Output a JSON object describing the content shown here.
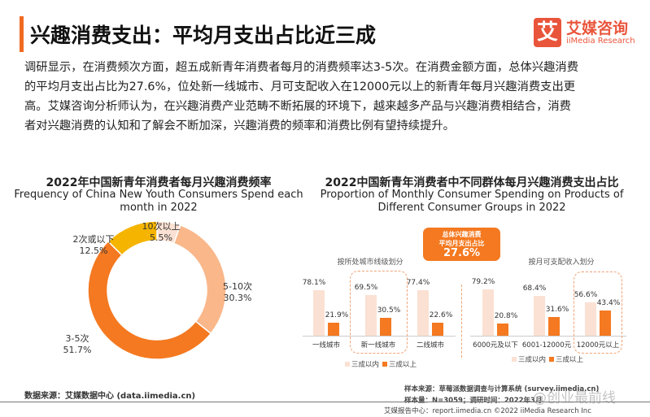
{
  "header": {
    "title": "兴趣消费支出：平均月支出占比近三成",
    "logo_glyph": "艾",
    "logo_cn": "艾媒咨询",
    "logo_en": "iiMedia Research"
  },
  "paragraph": [
    "调研显示，在消费频次方面，超五成新青年消费者每月的消费频率达3-5次。在消费金额方面，总体兴趣消费",
    "的平均月支出占比为27.6%，位处新一线城市、月可支配收入在12000元以上的新青年每月兴趣消费支出更",
    "高。艾媒咨询分析师认为，在兴趣消费产业范畴不断拓展的环境下，越来越多产品与兴趣消费相结合，消费",
    "者对兴趣消费的认知和了解会不断加深，兴趣消费的频率和消费比例有望持续提升。"
  ],
  "colors": {
    "accent": "#f06a22",
    "light": "#fbe1d3",
    "dark": "#f47920",
    "peach": "#f9b78a",
    "yellow": "#f5b400"
  },
  "chart_data": [
    {
      "type": "pie",
      "donut": true,
      "title": "2022年中国新青年消费者每月兴趣消费频率",
      "subtitle": "Frequency of China New Youth Consumers Spend each month in 2022",
      "slices": [
        {
          "label": "10次以上",
          "value": 5.5,
          "text": "5.5%"
        },
        {
          "label": "5-10次",
          "value": 30.3,
          "text": "30.3%"
        },
        {
          "label": "3-5次",
          "value": 51.7,
          "text": "51.7%"
        },
        {
          "label": "2次或以下",
          "value": 12.5,
          "text": "12.5%"
        }
      ]
    },
    {
      "type": "bar",
      "title": "2022中国新青年消费者中不同群体每月兴趣消费支出占比",
      "subtitle": "Proportion of Monthly Consumer Spending on Products  of Different Consumer Groups in 2022",
      "highlight": {
        "line1": "总体兴趣消费",
        "line2": "平均月支出占比",
        "value": "27.6%"
      },
      "series_names": [
        "三成以内",
        "三成以上"
      ],
      "groups": [
        {
          "title": "按所处城市线级划分",
          "categories": [
            "一线城市",
            "新一线城市",
            "二线城市"
          ],
          "series": [
            [
              78.1,
              69.5,
              77.4
            ],
            [
              21.9,
              30.5,
              22.6
            ]
          ],
          "highlighted": 1
        },
        {
          "title": "按月可支配收入划分",
          "categories": [
            "6000元及以下",
            "6001-12000元",
            "12000元以上"
          ],
          "series": [
            [
              79.2,
              68.4,
              56.6
            ],
            [
              20.8,
              31.6,
              43.4
            ]
          ],
          "highlighted": 2
        }
      ]
    }
  ],
  "footer": {
    "source": "数据来源：艾媒数据中心 (data.iimedia.cn)",
    "sample_source": "样本来源：草莓派数据调查与计算系统 (survey.iimedia.cn)",
    "sample_size": "样本量：N=3059；调研时间：2022年3月",
    "report": "艾媒报告中心：report.iimedia.cn  ©2022  iiMedia Research Inc",
    "watermark": "@创业最前线"
  }
}
